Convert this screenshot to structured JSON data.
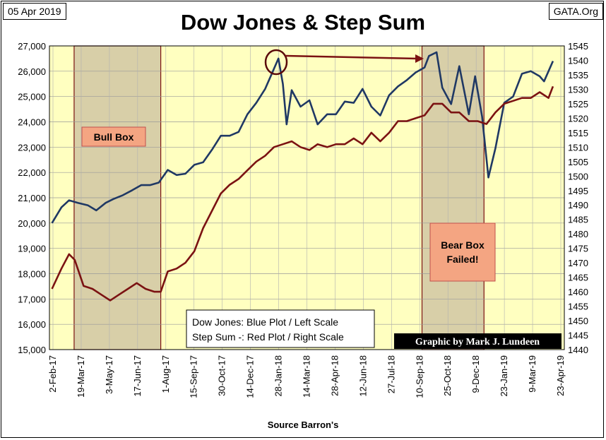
{
  "header": {
    "date": "05 Apr 2019",
    "source": "GATA.Org",
    "title": "Dow Jones & Step Sum"
  },
  "footer": {
    "xlabel": "Source Barron's"
  },
  "annotations": {
    "bull_box": "Bull Box",
    "bear_box_line1": "Bear Box",
    "bear_box_line2": "Failed!",
    "legend_line1": "Dow Jones: Blue Plot / Left Scale",
    "legend_line2": "Step Sum -: Red Plot / Right Scale",
    "credit": "Graphic by Mark J. Lundeen"
  },
  "colors": {
    "plot_bg": "#FFFFC0",
    "box_fill": "#D8CFA8",
    "box_border": "#7A1010",
    "dow": "#1F3864",
    "stepsum": "#7B1212",
    "label_fill": "#F4A582",
    "label_border": "#C0504D"
  },
  "chart_data": {
    "type": "line",
    "title": "Dow Jones & Step Sum",
    "xlabel": "Source Barron's",
    "x_tick_labels": [
      "2-Feb-17",
      "19-Mar-17",
      "3-May-17",
      "17-Jun-17",
      "1-Aug-17",
      "15-Sep-17",
      "30-Oct-17",
      "14-Dec-17",
      "28-Jan-18",
      "14-Mar-18",
      "28-Apr-18",
      "12-Jun-18",
      "27-Jul-18",
      "10-Sep-18",
      "25-Oct-18",
      "9-Dec-18",
      "23-Jan-19",
      "9-Mar-19",
      "23-Apr-19"
    ],
    "left_axis": {
      "min": 15000,
      "max": 27000,
      "step": 1000,
      "ticks": [
        "15,000",
        "16,000",
        "17,000",
        "18,000",
        "19,000",
        "20,000",
        "21,000",
        "22,000",
        "23,000",
        "24,000",
        "25,000",
        "26,000",
        "27,000"
      ]
    },
    "right_axis": {
      "min": 1440,
      "max": 1545,
      "step": 5,
      "ticks": [
        "1440",
        "1445",
        "1450",
        "1455",
        "1460",
        "1465",
        "1470",
        "1475",
        "1480",
        "1485",
        "1490",
        "1495",
        "1500",
        "1505",
        "1510",
        "1515",
        "1520",
        "1525",
        "1530",
        "1535",
        "1540",
        "1545"
      ]
    },
    "grid": true,
    "shaded_periods": [
      {
        "start": "2017-03-09",
        "end": "2017-07-24"
      },
      {
        "start": "2018-09-10",
        "end": "2018-12-17"
      }
    ],
    "series": [
      {
        "name": "Dow Jones",
        "axis": "left",
        "x": [
          "2017-02-02",
          "2017-02-17",
          "2017-03-01",
          "2017-03-15",
          "2017-03-31",
          "2017-04-13",
          "2017-04-28",
          "2017-05-10",
          "2017-05-25",
          "2017-06-09",
          "2017-06-23",
          "2017-07-07",
          "2017-07-21",
          "2017-08-04",
          "2017-08-18",
          "2017-09-01",
          "2017-09-15",
          "2017-09-29",
          "2017-10-13",
          "2017-10-27",
          "2017-11-10",
          "2017-11-24",
          "2017-12-08",
          "2017-12-22",
          "2018-01-05",
          "2018-01-19",
          "2018-01-26",
          "2018-02-02",
          "2018-02-08",
          "2018-02-16",
          "2018-03-02",
          "2018-03-16",
          "2018-03-29",
          "2018-04-13",
          "2018-04-27",
          "2018-05-11",
          "2018-05-25",
          "2018-06-08",
          "2018-06-22",
          "2018-07-06",
          "2018-07-20",
          "2018-08-03",
          "2018-08-17",
          "2018-08-31",
          "2018-09-14",
          "2018-09-21",
          "2018-10-03",
          "2018-10-12",
          "2018-10-26",
          "2018-11-08",
          "2018-11-23",
          "2018-12-03",
          "2018-12-14",
          "2018-12-24",
          "2019-01-04",
          "2019-01-18",
          "2019-02-01",
          "2019-02-15",
          "2019-03-01",
          "2019-03-15",
          "2019-03-22",
          "2019-04-05"
        ],
        "values": [
          20000,
          20620,
          20900,
          20800,
          20700,
          20500,
          20800,
          20950,
          21100,
          21300,
          21500,
          21500,
          21600,
          22100,
          21900,
          21950,
          22300,
          22400,
          22900,
          23450,
          23450,
          23600,
          24300,
          24750,
          25300,
          26100,
          26500,
          25500,
          23900,
          25250,
          24600,
          24850,
          23900,
          24300,
          24300,
          24800,
          24750,
          25300,
          24600,
          24250,
          25050,
          25400,
          25650,
          25950,
          26150,
          26600,
          26750,
          25350,
          24700,
          26200,
          24300,
          25800,
          24200,
          21800,
          22950,
          24750,
          25000,
          25900,
          26000,
          25800,
          25600,
          26400
        ]
      },
      {
        "name": "Step Sum",
        "axis": "right",
        "x": [
          "2017-02-02",
          "2017-02-17",
          "2017-03-01",
          "2017-03-10",
          "2017-03-24",
          "2017-04-07",
          "2017-04-21",
          "2017-05-05",
          "2017-05-19",
          "2017-06-02",
          "2017-06-16",
          "2017-06-30",
          "2017-07-14",
          "2017-07-24",
          "2017-08-04",
          "2017-08-18",
          "2017-09-01",
          "2017-09-15",
          "2017-09-29",
          "2017-10-13",
          "2017-10-27",
          "2017-11-10",
          "2017-11-24",
          "2017-12-08",
          "2017-12-22",
          "2018-01-05",
          "2018-01-19",
          "2018-02-02",
          "2018-02-16",
          "2018-03-02",
          "2018-03-16",
          "2018-03-29",
          "2018-04-13",
          "2018-04-27",
          "2018-05-11",
          "2018-05-25",
          "2018-06-08",
          "2018-06-22",
          "2018-07-06",
          "2018-07-20",
          "2018-08-03",
          "2018-08-17",
          "2018-08-31",
          "2018-09-14",
          "2018-09-28",
          "2018-10-12",
          "2018-10-26",
          "2018-11-08",
          "2018-11-23",
          "2018-12-07",
          "2018-12-21",
          "2019-01-04",
          "2019-01-18",
          "2019-02-01",
          "2019-02-15",
          "2019-03-01",
          "2019-03-15",
          "2019-03-29",
          "2019-04-05"
        ],
        "values": [
          1461,
          1468,
          1473,
          1471,
          1462,
          1461,
          1459,
          1457,
          1459,
          1461,
          1463,
          1461,
          1460,
          1460,
          1467,
          1468,
          1470,
          1474,
          1482,
          1488,
          1494,
          1497,
          1499,
          1502,
          1505,
          1507,
          1510,
          1511,
          1512,
          1510,
          1509,
          1511,
          1510,
          1511,
          1511,
          1513,
          1511,
          1515,
          1512,
          1515,
          1519,
          1519,
          1520,
          1521,
          1525,
          1525,
          1522,
          1522,
          1519,
          1519,
          1518,
          1522,
          1525,
          1526,
          1527,
          1527,
          1529,
          1527,
          1531
        ]
      }
    ]
  }
}
